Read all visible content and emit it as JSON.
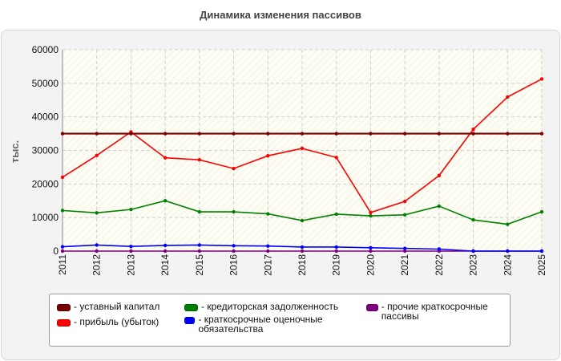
{
  "chart_data": {
    "type": "line",
    "title": "Динамика изменения пассивов",
    "ylabel": "тыс.",
    "xlabel": "",
    "ylim": [
      0,
      60000
    ],
    "yticks": [
      "0",
      "10000",
      "20000",
      "30000",
      "40000",
      "50000",
      "60000"
    ],
    "yticks_values": [
      0,
      10000,
      20000,
      30000,
      40000,
      50000,
      60000
    ],
    "x": [
      "2011",
      "2012",
      "2013",
      "2014",
      "2015",
      "2016",
      "2017",
      "2018",
      "2019",
      "2020",
      "2021",
      "2022",
      "2023",
      "2024",
      "2025"
    ],
    "grid": true,
    "legend_position": "bottom",
    "series": [
      {
        "name": "- уставный капитал",
        "color": "#7a0000",
        "values": [
          35000,
          35000,
          35000,
          35000,
          35000,
          35000,
          35000,
          35000,
          35000,
          35000,
          35000,
          35000,
          35000,
          35000,
          35000
        ]
      },
      {
        "name": "- прибыль (убыток)",
        "color": "#ff0000",
        "values": [
          22000,
          28500,
          35500,
          27800,
          27200,
          24600,
          28400,
          30600,
          27900,
          11500,
          14800,
          22500,
          36300,
          45900,
          51300
        ]
      },
      {
        "name": "- кредиторская задолженность",
        "color": "#008000",
        "values": [
          12100,
          11400,
          12400,
          15000,
          11700,
          11700,
          11100,
          9100,
          11000,
          10500,
          10800,
          13400,
          9300,
          8000,
          11700
        ]
      },
      {
        "name": "- краткосрочные оценочные обязательства",
        "color": "#0000ff",
        "values": [
          1300,
          1800,
          1400,
          1700,
          1800,
          1600,
          1500,
          1200,
          1200,
          1000,
          800,
          600,
          0,
          0,
          0
        ]
      },
      {
        "name": "- прочие краткосрочные пассивы",
        "color": "#800080",
        "values": [
          0,
          0,
          0,
          0,
          0,
          0,
          0,
          0,
          0,
          0,
          0,
          0,
          0,
          0,
          0
        ]
      }
    ]
  }
}
